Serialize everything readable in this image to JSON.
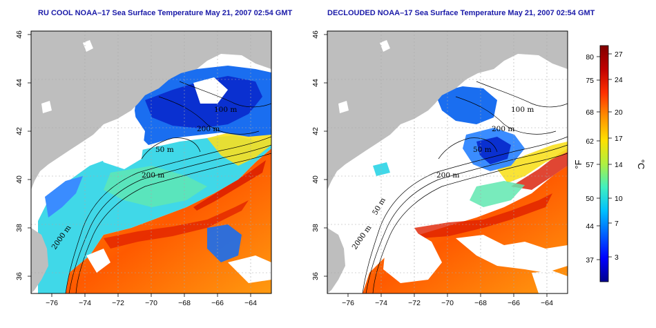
{
  "panels": [
    {
      "title": "RU COOL NOAA–17 Sea Surface Temperature May 21, 2007 02:54 GMT",
      "contour_labels": [
        "100 m",
        "200 m",
        "200 m",
        "50 m",
        "2000 m"
      ]
    },
    {
      "title": "DECLOUDED NOAA–17 Sea Surface Temperature May 21, 2007 02:54 GMT",
      "contour_labels": [
        "100 m",
        "200 m",
        "200 m",
        "50 m",
        "2000 m",
        "50 m"
      ]
    }
  ],
  "axes": {
    "x_ticks": [
      "−76",
      "−74",
      "−72",
      "−70",
      "−68",
      "−66",
      "−64"
    ],
    "y_ticks": [
      "46",
      "44",
      "42",
      "40",
      "38",
      "36"
    ]
  },
  "colorbar": {
    "left_unit": "°F",
    "right_unit": "°C",
    "fahrenheit_ticks": [
      "80",
      "75",
      "68",
      "62",
      "57",
      "50",
      "44",
      "37"
    ],
    "celsius_ticks": [
      "27",
      "24",
      "20",
      "17",
      "14",
      "10",
      "7",
      "3"
    ],
    "colors": [
      "#00008c",
      "#0000ff",
      "#0060ff",
      "#00c0ff",
      "#40f0c0",
      "#b0f040",
      "#ffe000",
      "#ff9000",
      "#ff3000",
      "#c00000",
      "#800000"
    ]
  },
  "map_colors": {
    "land": "#bebebe",
    "cloud": "#ffffff",
    "contour": "#000000"
  }
}
